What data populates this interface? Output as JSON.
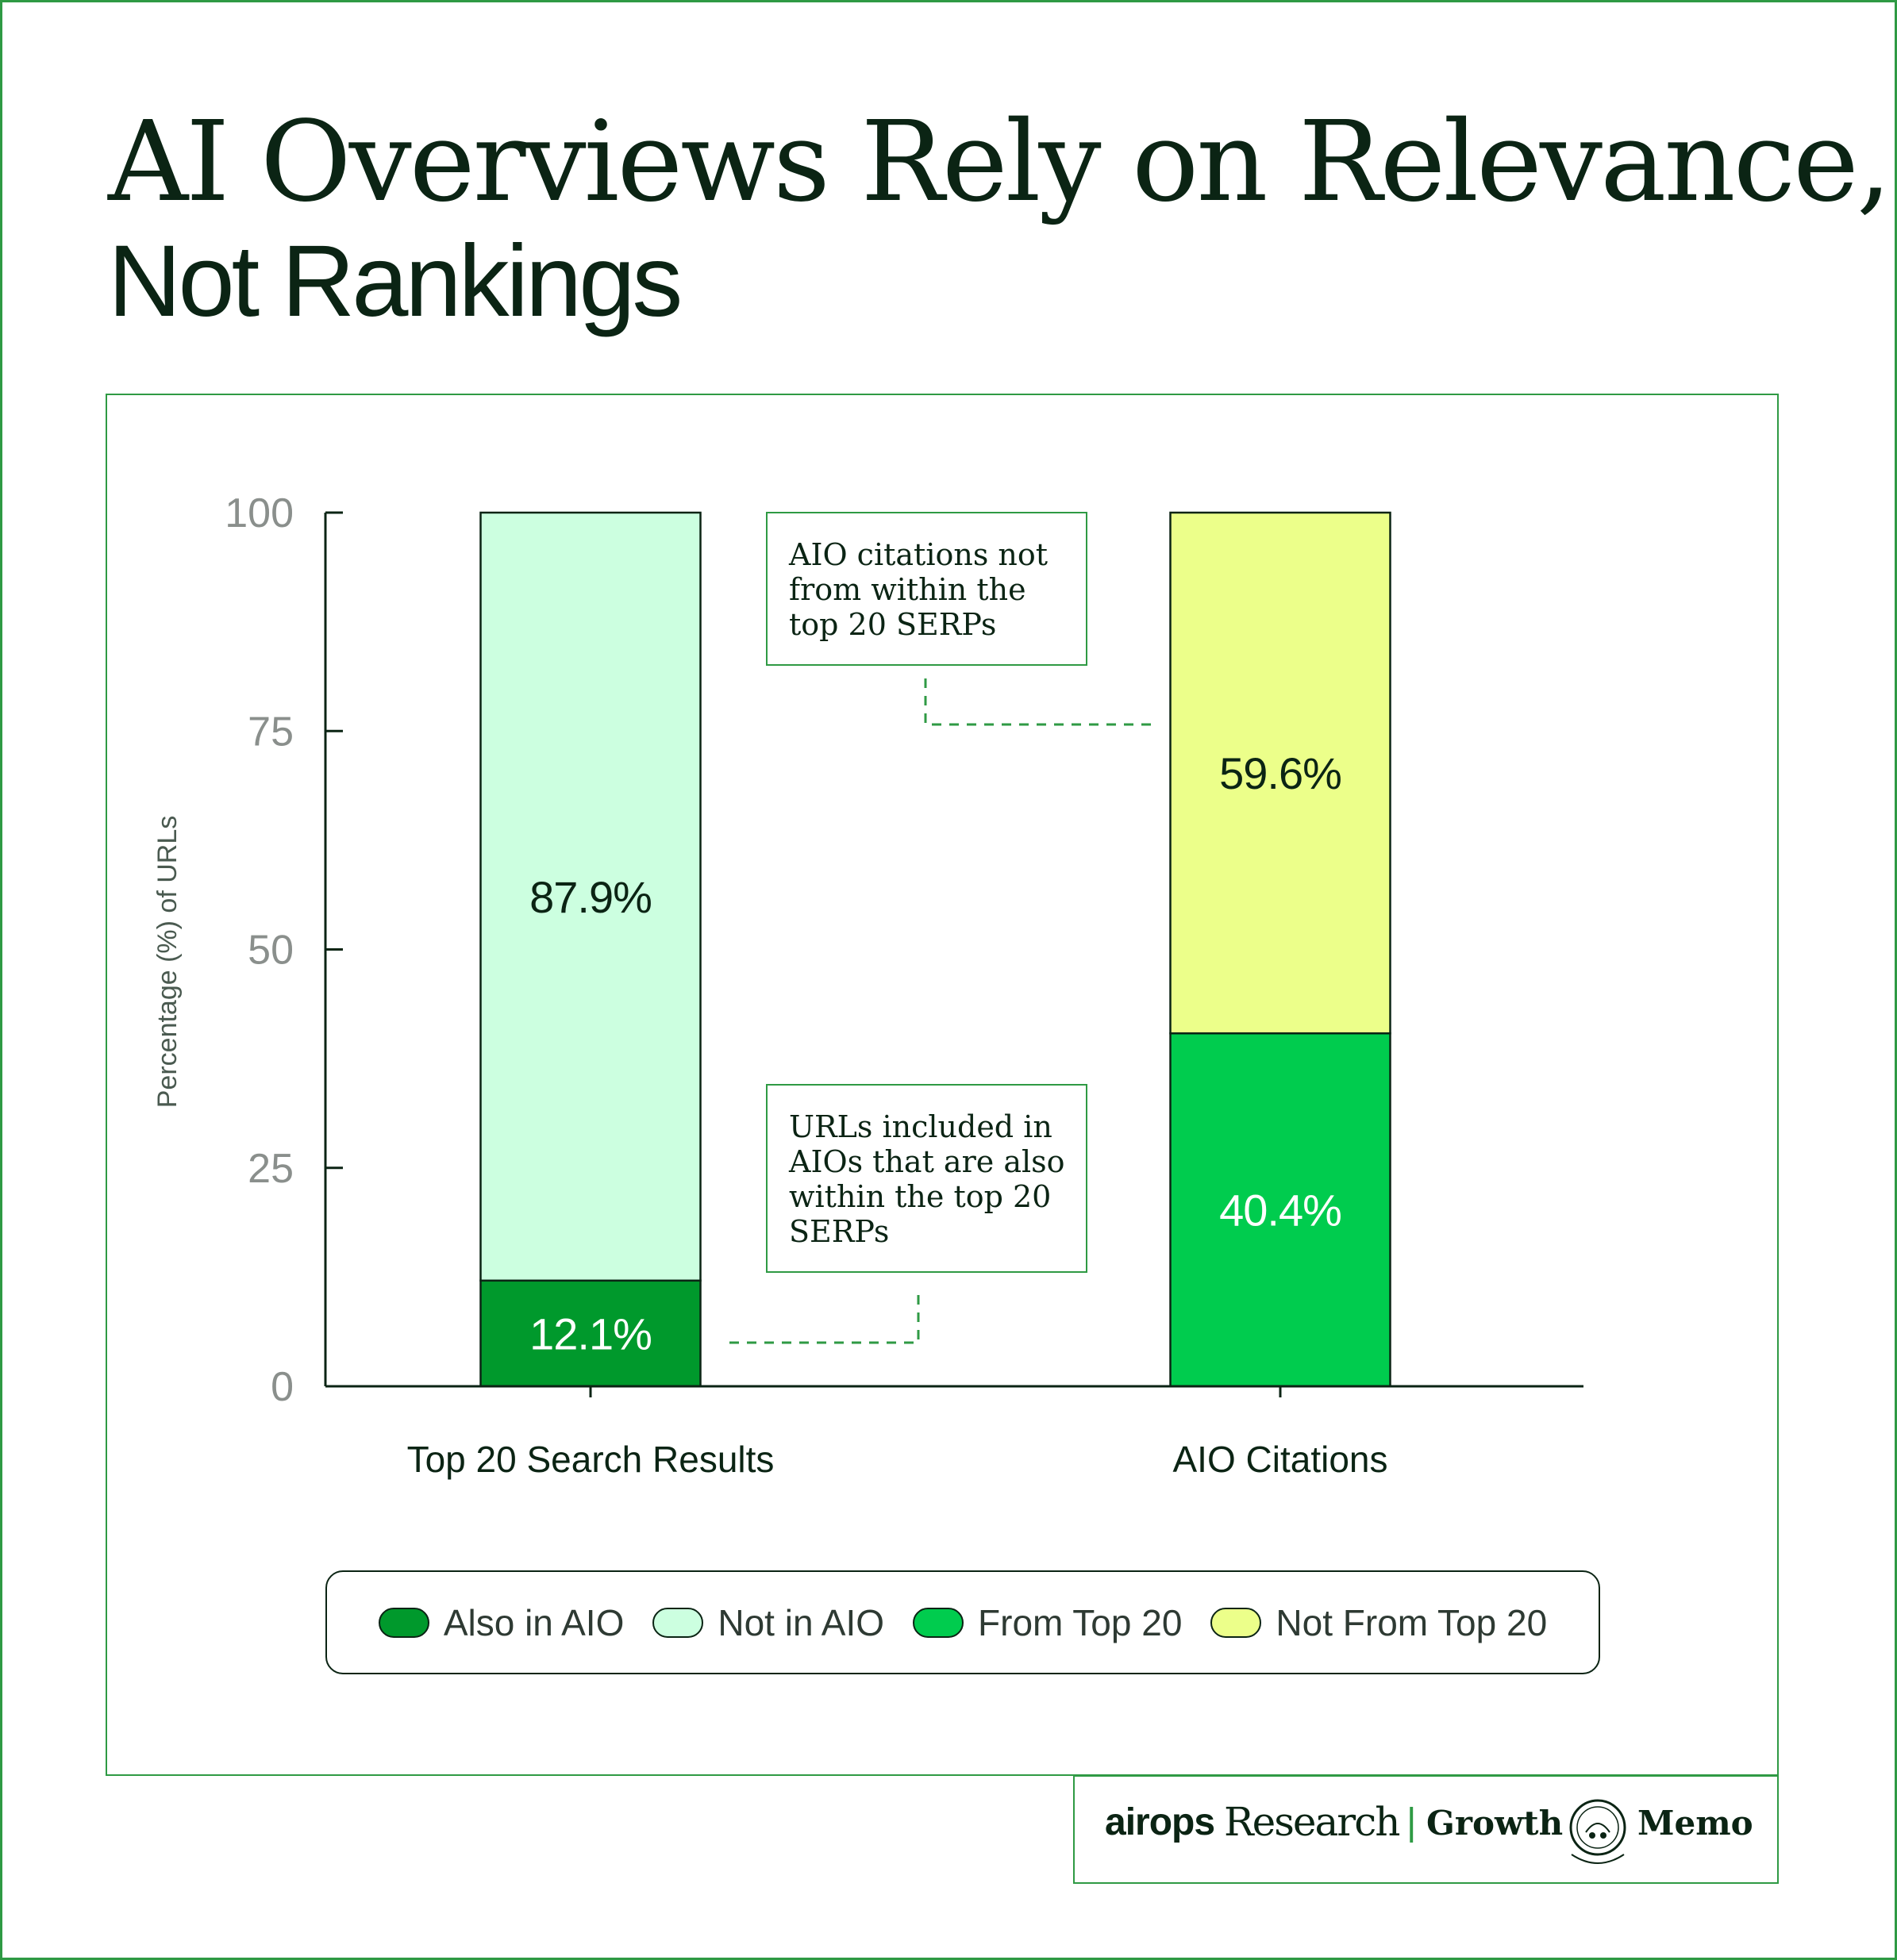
{
  "page": {
    "title_line_1": "AI Overviews Rely on Relevance,",
    "title_line_2": "Not Rankings"
  },
  "colors": {
    "frame": "#2f9a44",
    "text_dark": "#0b2414",
    "also_in_aio": "#00992c",
    "not_in_aio": "#ccffe0",
    "from_top_20": "#00cc4e",
    "not_from_top_20": "#ecff8a",
    "connector": "#2f9a44"
  },
  "chart_data": {
    "type": "bar",
    "stacked": true,
    "categories": [
      "Top 20 Search Results",
      "AIO Citations"
    ],
    "ylabel": "Percentage (%) of URLs",
    "xlabel": "",
    "ylim": [
      0,
      100
    ],
    "yticks": [
      0,
      25,
      50,
      75,
      100
    ],
    "yticks_labels": [
      "0",
      "25",
      "50",
      "75",
      "100"
    ],
    "grid": false,
    "legend_position": "bottom-center",
    "series": [
      {
        "name": "Also in AIO",
        "category": "Top 20 Search Results",
        "value": 12.1,
        "label": "12.1%",
        "color_key": "also_in_aio",
        "label_color": "#ffffff"
      },
      {
        "name": "Not in AIO",
        "category": "Top 20 Search Results",
        "value": 87.9,
        "label": "87.9%",
        "color_key": "not_in_aio",
        "label_color": "#0b2414"
      },
      {
        "name": "From Top 20",
        "category": "AIO Citations",
        "value": 40.4,
        "label": "40.4%",
        "color_key": "from_top_20",
        "label_color": "#ffffff"
      },
      {
        "name": "Not From Top 20",
        "category": "AIO Citations",
        "value": 59.6,
        "label": "59.6%",
        "color_key": "not_from_top_20",
        "label_color": "#0b2414"
      }
    ],
    "annotations": [
      {
        "text_lines": [
          "AIO citations not",
          "from within the",
          "top 20 SERPs"
        ],
        "points_to": "Not From Top 20"
      },
      {
        "text_lines": [
          "URLs included in",
          "AIOs that are also",
          "within the top 20",
          "SERPs"
        ],
        "points_to": "Also in AIO"
      }
    ]
  },
  "legend": {
    "items": [
      {
        "label": "Also in AIO",
        "color_key": "also_in_aio"
      },
      {
        "label": "Not in AIO",
        "color_key": "not_in_aio"
      },
      {
        "label": "From Top 20",
        "color_key": "from_top_20"
      },
      {
        "label": "Not From Top 20",
        "color_key": "not_from_top_20"
      }
    ]
  },
  "footer": {
    "airops": "airops",
    "research": "Research",
    "separator": "|",
    "growth": "Growth",
    "memo": "Memo",
    "logo_icon": "growth-memo-badge-icon",
    "logo_text": "GROWTH MEMO"
  }
}
